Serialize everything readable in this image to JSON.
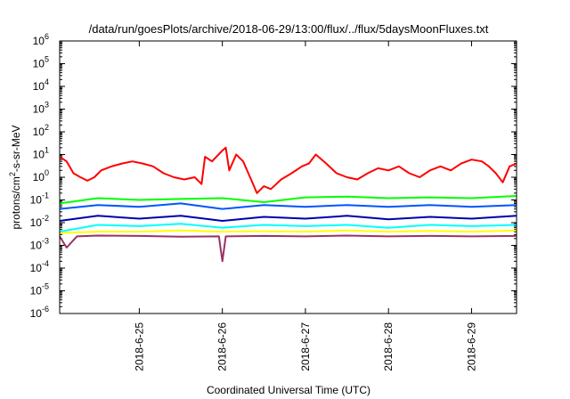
{
  "chart_data": {
    "type": "line",
    "title": "/data/run/goesPlots/archive/2018-06-29/13:00/flux/../flux/5daysMoonFluxes.txt",
    "xlabel": "Coordinated Universal Time (UTC)",
    "ylabel": {
      "prefix": "protons/cm",
      "superscript": "2",
      "suffix": "-s-sr-MeV"
    },
    "y_scale": "log",
    "ylim": [
      1e-06,
      1000000.0
    ],
    "y_ticks": [
      {
        "base": "10",
        "exp": "-6"
      },
      {
        "base": "10",
        "exp": "-5"
      },
      {
        "base": "10",
        "exp": "-4"
      },
      {
        "base": "10",
        "exp": "-3"
      },
      {
        "base": "10",
        "exp": "-2"
      },
      {
        "base": "10",
        "exp": "-1"
      },
      {
        "base": "10",
        "exp": "0"
      },
      {
        "base": "10",
        "exp": "1"
      },
      {
        "base": "10",
        "exp": "2"
      },
      {
        "base": "10",
        "exp": "3"
      },
      {
        "base": "10",
        "exp": "4"
      },
      {
        "base": "10",
        "exp": "5"
      },
      {
        "base": "10",
        "exp": "6"
      }
    ],
    "xlim": [
      "2018-06-24T01:00",
      "2018-06-29T13:00"
    ],
    "x_ticks": [
      "2018-6-25",
      "2018-6-26",
      "2018-6-27",
      "2018-6-28",
      "2018-6-29"
    ],
    "grid": false,
    "legend": "none",
    "series": [
      {
        "color": "#ff0000",
        "points": [
          [
            "2018-06-24T01:00",
            8
          ],
          [
            "2018-06-24T03:00",
            5
          ],
          [
            "2018-06-24T05:00",
            1.5
          ],
          [
            "2018-06-24T07:00",
            1.0
          ],
          [
            "2018-06-24T09:00",
            0.7
          ],
          [
            "2018-06-24T11:00",
            1.0
          ],
          [
            "2018-06-24T13:00",
            2.0
          ],
          [
            "2018-06-24T16:00",
            3.0
          ],
          [
            "2018-06-24T19:00",
            4.0
          ],
          [
            "2018-06-24T22:00",
            5.0
          ],
          [
            "2018-06-25T01:00",
            4.0
          ],
          [
            "2018-06-25T04:00",
            3.0
          ],
          [
            "2018-06-25T07:00",
            1.5
          ],
          [
            "2018-06-25T10:00",
            1.0
          ],
          [
            "2018-06-25T13:00",
            0.8
          ],
          [
            "2018-06-25T16:00",
            1.0
          ],
          [
            "2018-06-25T18:00",
            0.5
          ],
          [
            "2018-06-25T19:00",
            8.0
          ],
          [
            "2018-06-25T21:00",
            5.0
          ],
          [
            "2018-06-26T00:00",
            15.0
          ],
          [
            "2018-06-26T01:00",
            20.0
          ],
          [
            "2018-06-26T02:00",
            2.0
          ],
          [
            "2018-06-26T04:00",
            10.0
          ],
          [
            "2018-06-26T06:00",
            5.0
          ],
          [
            "2018-06-26T08:00",
            1.0
          ],
          [
            "2018-06-26T10:00",
            0.2
          ],
          [
            "2018-06-26T12:00",
            0.4
          ],
          [
            "2018-06-26T14:00",
            0.3
          ],
          [
            "2018-06-26T17:00",
            0.8
          ],
          [
            "2018-06-26T20:00",
            1.5
          ],
          [
            "2018-06-26T23:00",
            3.0
          ],
          [
            "2018-06-27T01:00",
            4.0
          ],
          [
            "2018-06-27T03:00",
            10.0
          ],
          [
            "2018-06-27T06:00",
            4.0
          ],
          [
            "2018-06-27T09:00",
            1.5
          ],
          [
            "2018-06-27T12:00",
            1.0
          ],
          [
            "2018-06-27T15:00",
            0.8
          ],
          [
            "2018-06-27T18:00",
            1.5
          ],
          [
            "2018-06-27T21:00",
            2.5
          ],
          [
            "2018-06-28T00:00",
            2.0
          ],
          [
            "2018-06-28T03:00",
            3.0
          ],
          [
            "2018-06-28T06:00",
            1.5
          ],
          [
            "2018-06-28T09:00",
            1.0
          ],
          [
            "2018-06-28T12:00",
            2.0
          ],
          [
            "2018-06-28T15:00",
            3.0
          ],
          [
            "2018-06-28T18:00",
            2.0
          ],
          [
            "2018-06-28T21:00",
            4.0
          ],
          [
            "2018-06-29T00:00",
            6.0
          ],
          [
            "2018-06-29T03:00",
            5.0
          ],
          [
            "2018-06-29T05:00",
            3.0
          ],
          [
            "2018-06-29T07:00",
            1.5
          ],
          [
            "2018-06-29T09:00",
            0.6
          ],
          [
            "2018-06-29T11:00",
            3.0
          ],
          [
            "2018-06-29T13:00",
            4.0
          ]
        ]
      },
      {
        "color": "#00ff00",
        "points": [
          [
            "2018-06-24T01:00",
            0.07
          ],
          [
            "2018-06-24T12:00",
            0.12
          ],
          [
            "2018-06-25T00:00",
            0.1
          ],
          [
            "2018-06-25T12:00",
            0.11
          ],
          [
            "2018-06-26T00:00",
            0.12
          ],
          [
            "2018-06-26T12:00",
            0.08
          ],
          [
            "2018-06-27T00:00",
            0.13
          ],
          [
            "2018-06-27T12:00",
            0.14
          ],
          [
            "2018-06-28T00:00",
            0.12
          ],
          [
            "2018-06-28T12:00",
            0.13
          ],
          [
            "2018-06-29T00:00",
            0.12
          ],
          [
            "2018-06-29T13:00",
            0.15
          ]
        ]
      },
      {
        "color": "#00ffff",
        "points": [
          [
            "2018-06-24T01:00",
            0.004
          ],
          [
            "2018-06-24T12:00",
            0.008
          ],
          [
            "2018-06-25T00:00",
            0.007
          ],
          [
            "2018-06-25T12:00",
            0.009
          ],
          [
            "2018-06-26T00:00",
            0.006
          ],
          [
            "2018-06-26T12:00",
            0.008
          ],
          [
            "2018-06-27T00:00",
            0.007
          ],
          [
            "2018-06-27T12:00",
            0.008
          ],
          [
            "2018-06-28T00:00",
            0.006
          ],
          [
            "2018-06-28T12:00",
            0.008
          ],
          [
            "2018-06-29T00:00",
            0.007
          ],
          [
            "2018-06-29T13:00",
            0.008
          ]
        ]
      },
      {
        "color": "#0055ff",
        "points": [
          [
            "2018-06-24T01:00",
            0.04
          ],
          [
            "2018-06-24T12:00",
            0.06
          ],
          [
            "2018-06-25T00:00",
            0.05
          ],
          [
            "2018-06-25T12:00",
            0.07
          ],
          [
            "2018-06-26T00:00",
            0.04
          ],
          [
            "2018-06-26T12:00",
            0.06
          ],
          [
            "2018-06-27T00:00",
            0.05
          ],
          [
            "2018-06-27T12:00",
            0.06
          ],
          [
            "2018-06-28T00:00",
            0.05
          ],
          [
            "2018-06-28T12:00",
            0.06
          ],
          [
            "2018-06-29T00:00",
            0.05
          ],
          [
            "2018-06-29T13:00",
            0.06
          ]
        ]
      },
      {
        "color": "#0000aa",
        "points": [
          [
            "2018-06-24T01:00",
            0.012
          ],
          [
            "2018-06-24T12:00",
            0.02
          ],
          [
            "2018-06-25T00:00",
            0.015
          ],
          [
            "2018-06-25T12:00",
            0.02
          ],
          [
            "2018-06-26T00:00",
            0.012
          ],
          [
            "2018-06-26T12:00",
            0.018
          ],
          [
            "2018-06-27T00:00",
            0.015
          ],
          [
            "2018-06-27T12:00",
            0.02
          ],
          [
            "2018-06-28T00:00",
            0.014
          ],
          [
            "2018-06-28T12:00",
            0.018
          ],
          [
            "2018-06-29T00:00",
            0.015
          ],
          [
            "2018-06-29T13:00",
            0.02
          ]
        ]
      },
      {
        "color": "#ffff00",
        "points": [
          [
            "2018-06-24T01:00",
            0.0035
          ],
          [
            "2018-06-24T12:00",
            0.004
          ],
          [
            "2018-06-25T00:00",
            0.004
          ],
          [
            "2018-06-25T12:00",
            0.0045
          ],
          [
            "2018-06-26T00:00",
            0.004
          ],
          [
            "2018-06-26T12:00",
            0.0042
          ],
          [
            "2018-06-27T00:00",
            0.004
          ],
          [
            "2018-06-27T12:00",
            0.0045
          ],
          [
            "2018-06-28T00:00",
            0.004
          ],
          [
            "2018-06-28T12:00",
            0.0043
          ],
          [
            "2018-06-29T00:00",
            0.004
          ],
          [
            "2018-06-29T13:00",
            0.0045
          ]
        ]
      },
      {
        "color": "#993366",
        "points": [
          [
            "2018-06-24T01:00",
            0.0025
          ],
          [
            "2018-06-24T03:00",
            0.0008
          ],
          [
            "2018-06-24T06:00",
            0.0025
          ],
          [
            "2018-06-24T12:00",
            0.0027
          ],
          [
            "2018-06-25T00:00",
            0.0026
          ],
          [
            "2018-06-25T12:00",
            0.0024
          ],
          [
            "2018-06-25T23:00",
            0.0025
          ],
          [
            "2018-06-26T00:00",
            0.0002
          ],
          [
            "2018-06-26T01:00",
            0.0025
          ],
          [
            "2018-06-26T12:00",
            0.0026
          ],
          [
            "2018-06-27T00:00",
            0.0025
          ],
          [
            "2018-06-27T12:00",
            0.0027
          ],
          [
            "2018-06-28T00:00",
            0.0025
          ],
          [
            "2018-06-28T12:00",
            0.0026
          ],
          [
            "2018-06-29T00:00",
            0.0025
          ],
          [
            "2018-06-29T13:00",
            0.0026
          ]
        ]
      }
    ]
  }
}
